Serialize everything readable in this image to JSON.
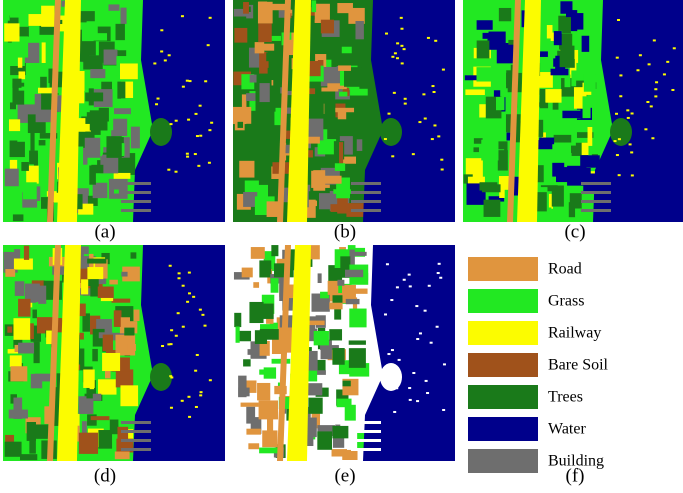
{
  "panels": [
    {
      "label": "(a)"
    },
    {
      "label": "(b)"
    },
    {
      "label": "(c)"
    },
    {
      "label": "(d)"
    },
    {
      "label": "(e)"
    },
    {
      "label": "(f)"
    }
  ],
  "legend": {
    "items": [
      {
        "name": "Road",
        "color": "#e0953e"
      },
      {
        "name": "Grass",
        "color": "#22e822"
      },
      {
        "name": "Railway",
        "color": "#fcfc00"
      },
      {
        "name": "Bare Soil",
        "color": "#a0521b"
      },
      {
        "name": "Trees",
        "color": "#1a7a1a"
      },
      {
        "name": "Water",
        "color": "#00008b"
      },
      {
        "name": "Building",
        "color": "#6e6e6e"
      }
    ]
  }
}
